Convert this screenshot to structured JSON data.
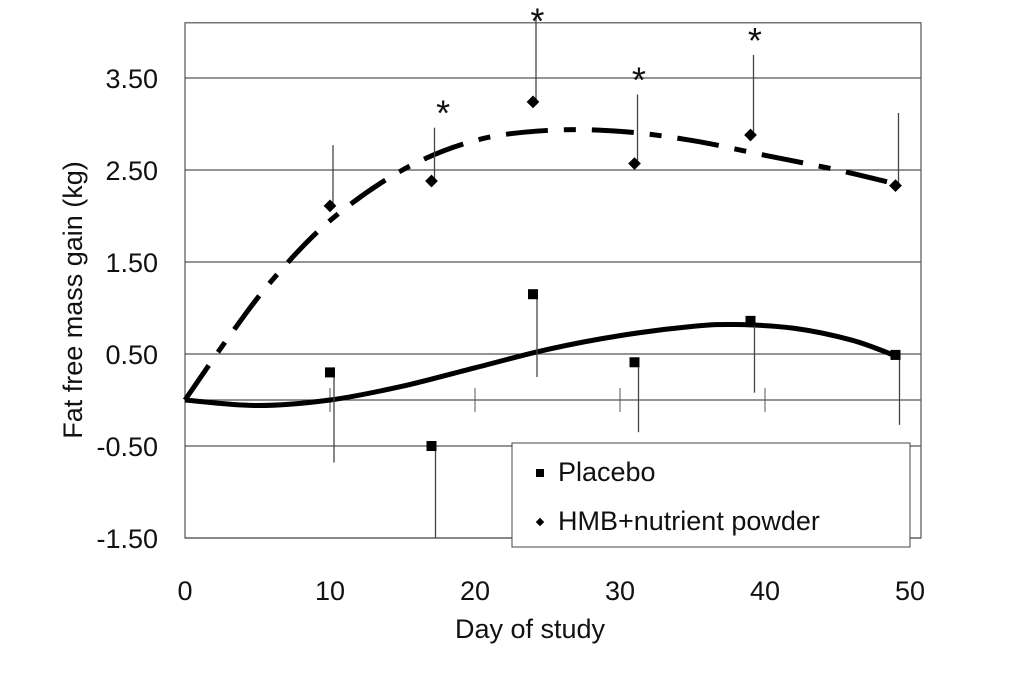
{
  "chart_data": {
    "type": "scatter",
    "xlabel": "Day of study",
    "ylabel": "Fat free mass gain (kg)",
    "xlim": [
      0,
      50
    ],
    "ylim": [
      -1.5,
      4.1
    ],
    "xticks": [
      "0",
      "10",
      "20",
      "30",
      "40",
      "50"
    ],
    "yticks": [
      "3.50",
      "2.50",
      "1.50",
      "0.50",
      "-0.50",
      "-1.50"
    ],
    "ytick_values": [
      3.5,
      2.5,
      1.5,
      0.5,
      -0.5,
      -1.5
    ],
    "grid": true,
    "legend_position": "bottom-right",
    "series": [
      {
        "name": "Placebo",
        "marker": "square",
        "x": [
          10,
          17,
          24,
          31,
          39,
          49
        ],
        "y": [
          0.3,
          -0.5,
          1.15,
          0.41,
          0.86,
          0.49
        ],
        "error_lower": [
          -0.68,
          -1.5,
          0.25,
          -0.35,
          0.08,
          -0.27
        ],
        "trendline": {
          "style": "solid",
          "x": [
            0,
            5,
            10,
            15,
            20,
            25,
            30,
            35,
            38,
            42,
            46,
            49
          ],
          "y": [
            0,
            -0.06,
            0.0,
            0.15,
            0.35,
            0.55,
            0.7,
            0.8,
            0.82,
            0.78,
            0.65,
            0.48
          ]
        }
      },
      {
        "name": "HMB+nutrient powder",
        "marker": "diamond",
        "x": [
          10,
          17,
          24,
          31,
          39,
          49
        ],
        "y": [
          2.11,
          2.38,
          3.24,
          2.57,
          2.88,
          2.33
        ],
        "error_upper": [
          2.77,
          2.96,
          4.18,
          3.32,
          3.75,
          3.12
        ],
        "trendline": {
          "style": "dashed",
          "x": [
            0,
            3,
            6,
            10,
            15,
            20,
            25,
            30,
            35,
            40,
            45,
            49
          ],
          "y": [
            0,
            0.68,
            1.3,
            1.95,
            2.5,
            2.82,
            2.93,
            2.92,
            2.82,
            2.66,
            2.5,
            2.35
          ]
        }
      }
    ],
    "annotations": [
      {
        "text": "*",
        "x": 17.8
      },
      {
        "text": "*",
        "x": 24.3
      },
      {
        "text": "*",
        "x": 31.3
      },
      {
        "text": "*",
        "x": 39.3
      }
    ]
  }
}
